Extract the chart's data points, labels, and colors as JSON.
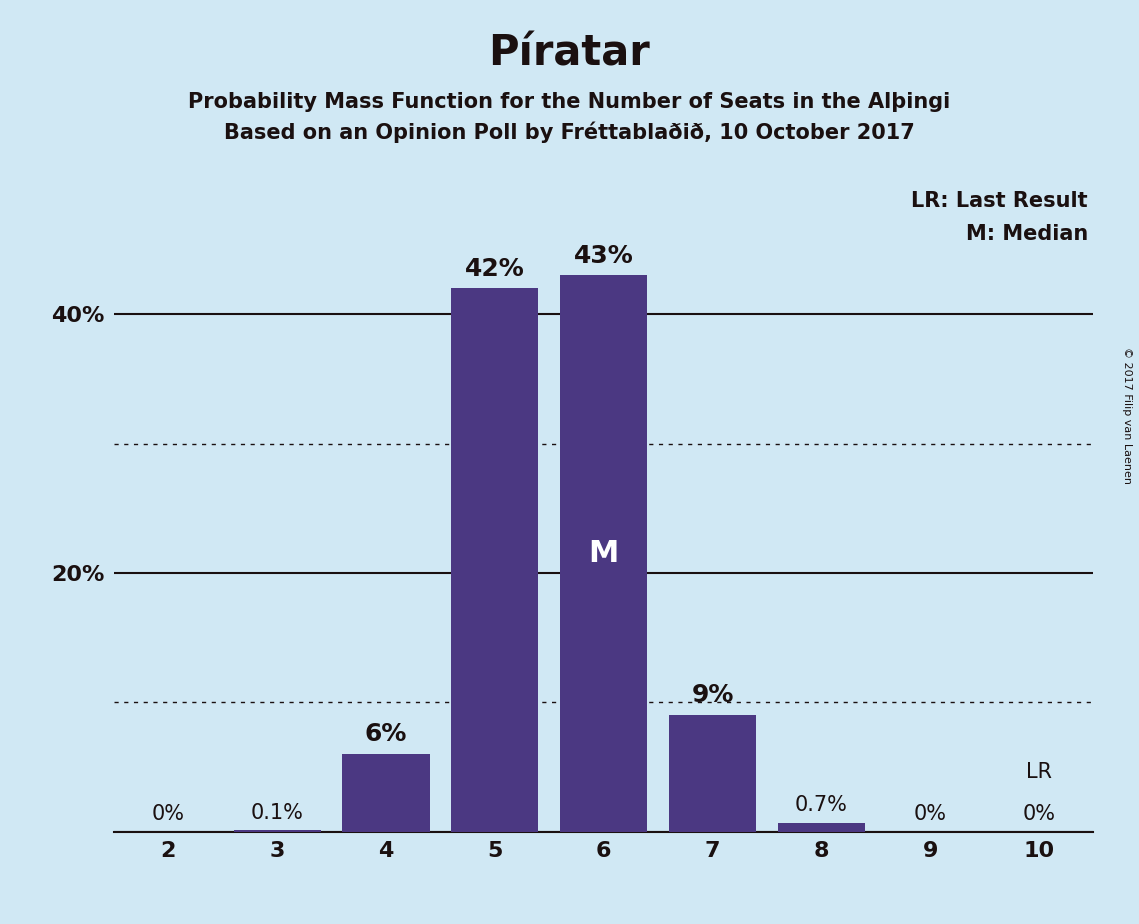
{
  "title": "Píratar",
  "subtitle1": "Probability Mass Function for the Number of Seats in the Alþingi",
  "subtitle2": "Based on an Opinion Poll by Fréttablaðið, 10 October 2017",
  "copyright": "© 2017 Filip van Laenen",
  "seats": [
    2,
    3,
    4,
    5,
    6,
    7,
    8,
    9,
    10
  ],
  "values": [
    0.0,
    0.1,
    6.0,
    42.0,
    43.0,
    9.0,
    0.7,
    0.0,
    0.0
  ],
  "bar_color": "#4B3882",
  "background_color": "#D0E8F4",
  "text_color": "#1a1010",
  "bar_labels": [
    "0%",
    "0.1%",
    "6%",
    "42%",
    "43%",
    "9%",
    "0.7%",
    "0%",
    "0%"
  ],
  "median_seat": 6,
  "median_label": "M",
  "lr_seat": 10,
  "lr_label": "LR",
  "legend_text": [
    "LR: Last Result",
    "M: Median"
  ],
  "solid_yticks": [
    0,
    20,
    40
  ],
  "dotted_yticks": [
    10,
    30
  ],
  "ylim": [
    0,
    50
  ],
  "xlim": [
    1.5,
    10.5
  ],
  "title_fontsize": 30,
  "subtitle_fontsize": 15,
  "bar_label_large_fontsize": 18,
  "bar_label_small_fontsize": 15,
  "tick_fontsize": 16,
  "ytick_fontsize": 16,
  "legend_fontsize": 15,
  "median_fontsize": 22,
  "copyright_fontsize": 8
}
